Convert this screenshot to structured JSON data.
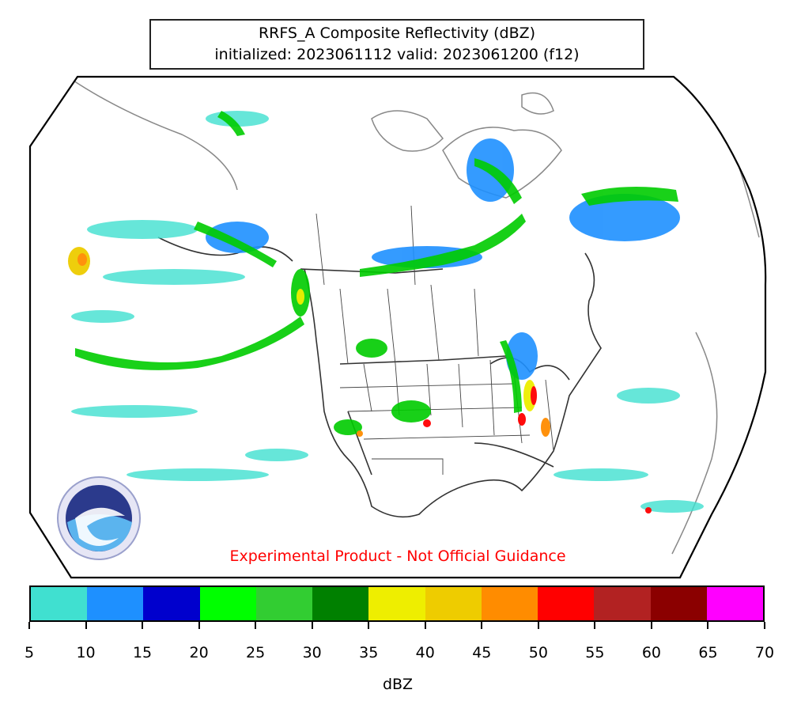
{
  "title": {
    "line1": "RRFS_A Composite Reflectivity (dBZ)",
    "line2": "initialized: 2023061112 valid: 2023061200 (f12)"
  },
  "warning": "Experimental Product - Not Official Guidance",
  "logo": {
    "name": "noaa-logo",
    "text": "NOAA"
  },
  "colorbar": {
    "label": "dBZ",
    "ticks": [
      "5",
      "10",
      "15",
      "20",
      "25",
      "30",
      "35",
      "40",
      "45",
      "50",
      "55",
      "60",
      "65",
      "70"
    ],
    "colors": [
      "#40e0d0",
      "#1e90ff",
      "#0000cd",
      "#00ff00",
      "#32cd32",
      "#008000",
      "#eeee00",
      "#eecc00",
      "#ff8c00",
      "#ff0000",
      "#b22222",
      "#8b0000",
      "#ff00ff"
    ]
  }
}
